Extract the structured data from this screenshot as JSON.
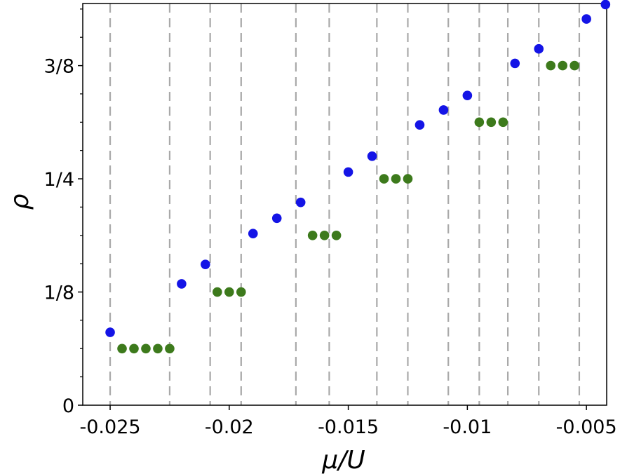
{
  "chart_data": {
    "type": "scatter",
    "xlabel": "μ/U",
    "ylabel": "ρ",
    "xlim": [
      -0.02615,
      -0.00415
    ],
    "ylim": [
      0,
      0.4436
    ],
    "x_ticks": [
      {
        "value": -0.025,
        "label": "-0.025"
      },
      {
        "value": -0.02,
        "label": "-0.02"
      },
      {
        "value": -0.015,
        "label": "-0.015"
      },
      {
        "value": -0.01,
        "label": "-0.01"
      },
      {
        "value": -0.005,
        "label": "-0.005"
      }
    ],
    "y_ticks": [
      {
        "value": 0,
        "label": "0"
      },
      {
        "value": 0.125,
        "label": "1/8"
      },
      {
        "value": 0.25,
        "label": "1/4"
      },
      {
        "value": 0.375,
        "label": "3/8"
      }
    ],
    "y_minor_ticks": [
      0.0313,
      0.0625,
      0.0938,
      0.1563,
      0.1875,
      0.2188,
      0.2813,
      0.3125,
      0.3438,
      0.4063,
      0.4375
    ],
    "vertical_dashed_lines": [
      -0.025,
      -0.0225,
      -0.0208,
      -0.0195,
      -0.0172,
      -0.0158,
      -0.0138,
      -0.0125,
      -0.0108,
      -0.0095,
      -0.0083,
      -0.007,
      -0.0053
    ],
    "grid": false,
    "series": [
      {
        "color": "#1414e6",
        "points": [
          {
            "x": -0.025,
            "y": 0.0805
          },
          {
            "x": -0.022,
            "y": 0.134
          },
          {
            "x": -0.021,
            "y": 0.1555
          },
          {
            "x": -0.019,
            "y": 0.1895
          },
          {
            "x": -0.018,
            "y": 0.2065
          },
          {
            "x": -0.017,
            "y": 0.224
          },
          {
            "x": -0.015,
            "y": 0.2575
          },
          {
            "x": -0.014,
            "y": 0.275
          },
          {
            "x": -0.012,
            "y": 0.3095
          },
          {
            "x": -0.011,
            "y": 0.326
          },
          {
            "x": -0.01,
            "y": 0.342
          },
          {
            "x": -0.008,
            "y": 0.3775
          },
          {
            "x": -0.007,
            "y": 0.3935
          },
          {
            "x": -0.005,
            "y": 0.4265
          },
          {
            "x": -0.0042,
            "y": 0.4425
          }
        ]
      },
      {
        "color": "#3d7a1c",
        "points": [
          {
            "x": -0.0245,
            "y": 0.0625
          },
          {
            "x": -0.024,
            "y": 0.0625
          },
          {
            "x": -0.0235,
            "y": 0.0625
          },
          {
            "x": -0.023,
            "y": 0.0625
          },
          {
            "x": -0.0225,
            "y": 0.0625
          },
          {
            "x": -0.0205,
            "y": 0.125
          },
          {
            "x": -0.02,
            "y": 0.125
          },
          {
            "x": -0.0195,
            "y": 0.125
          },
          {
            "x": -0.0165,
            "y": 0.1875
          },
          {
            "x": -0.016,
            "y": 0.1875
          },
          {
            "x": -0.0155,
            "y": 0.1875
          },
          {
            "x": -0.0135,
            "y": 0.25
          },
          {
            "x": -0.013,
            "y": 0.25
          },
          {
            "x": -0.0125,
            "y": 0.25
          },
          {
            "x": -0.0095,
            "y": 0.3125
          },
          {
            "x": -0.009,
            "y": 0.3125
          },
          {
            "x": -0.0085,
            "y": 0.3125
          },
          {
            "x": -0.0065,
            "y": 0.375
          },
          {
            "x": -0.006,
            "y": 0.375
          },
          {
            "x": -0.0055,
            "y": 0.375
          }
        ]
      }
    ]
  }
}
